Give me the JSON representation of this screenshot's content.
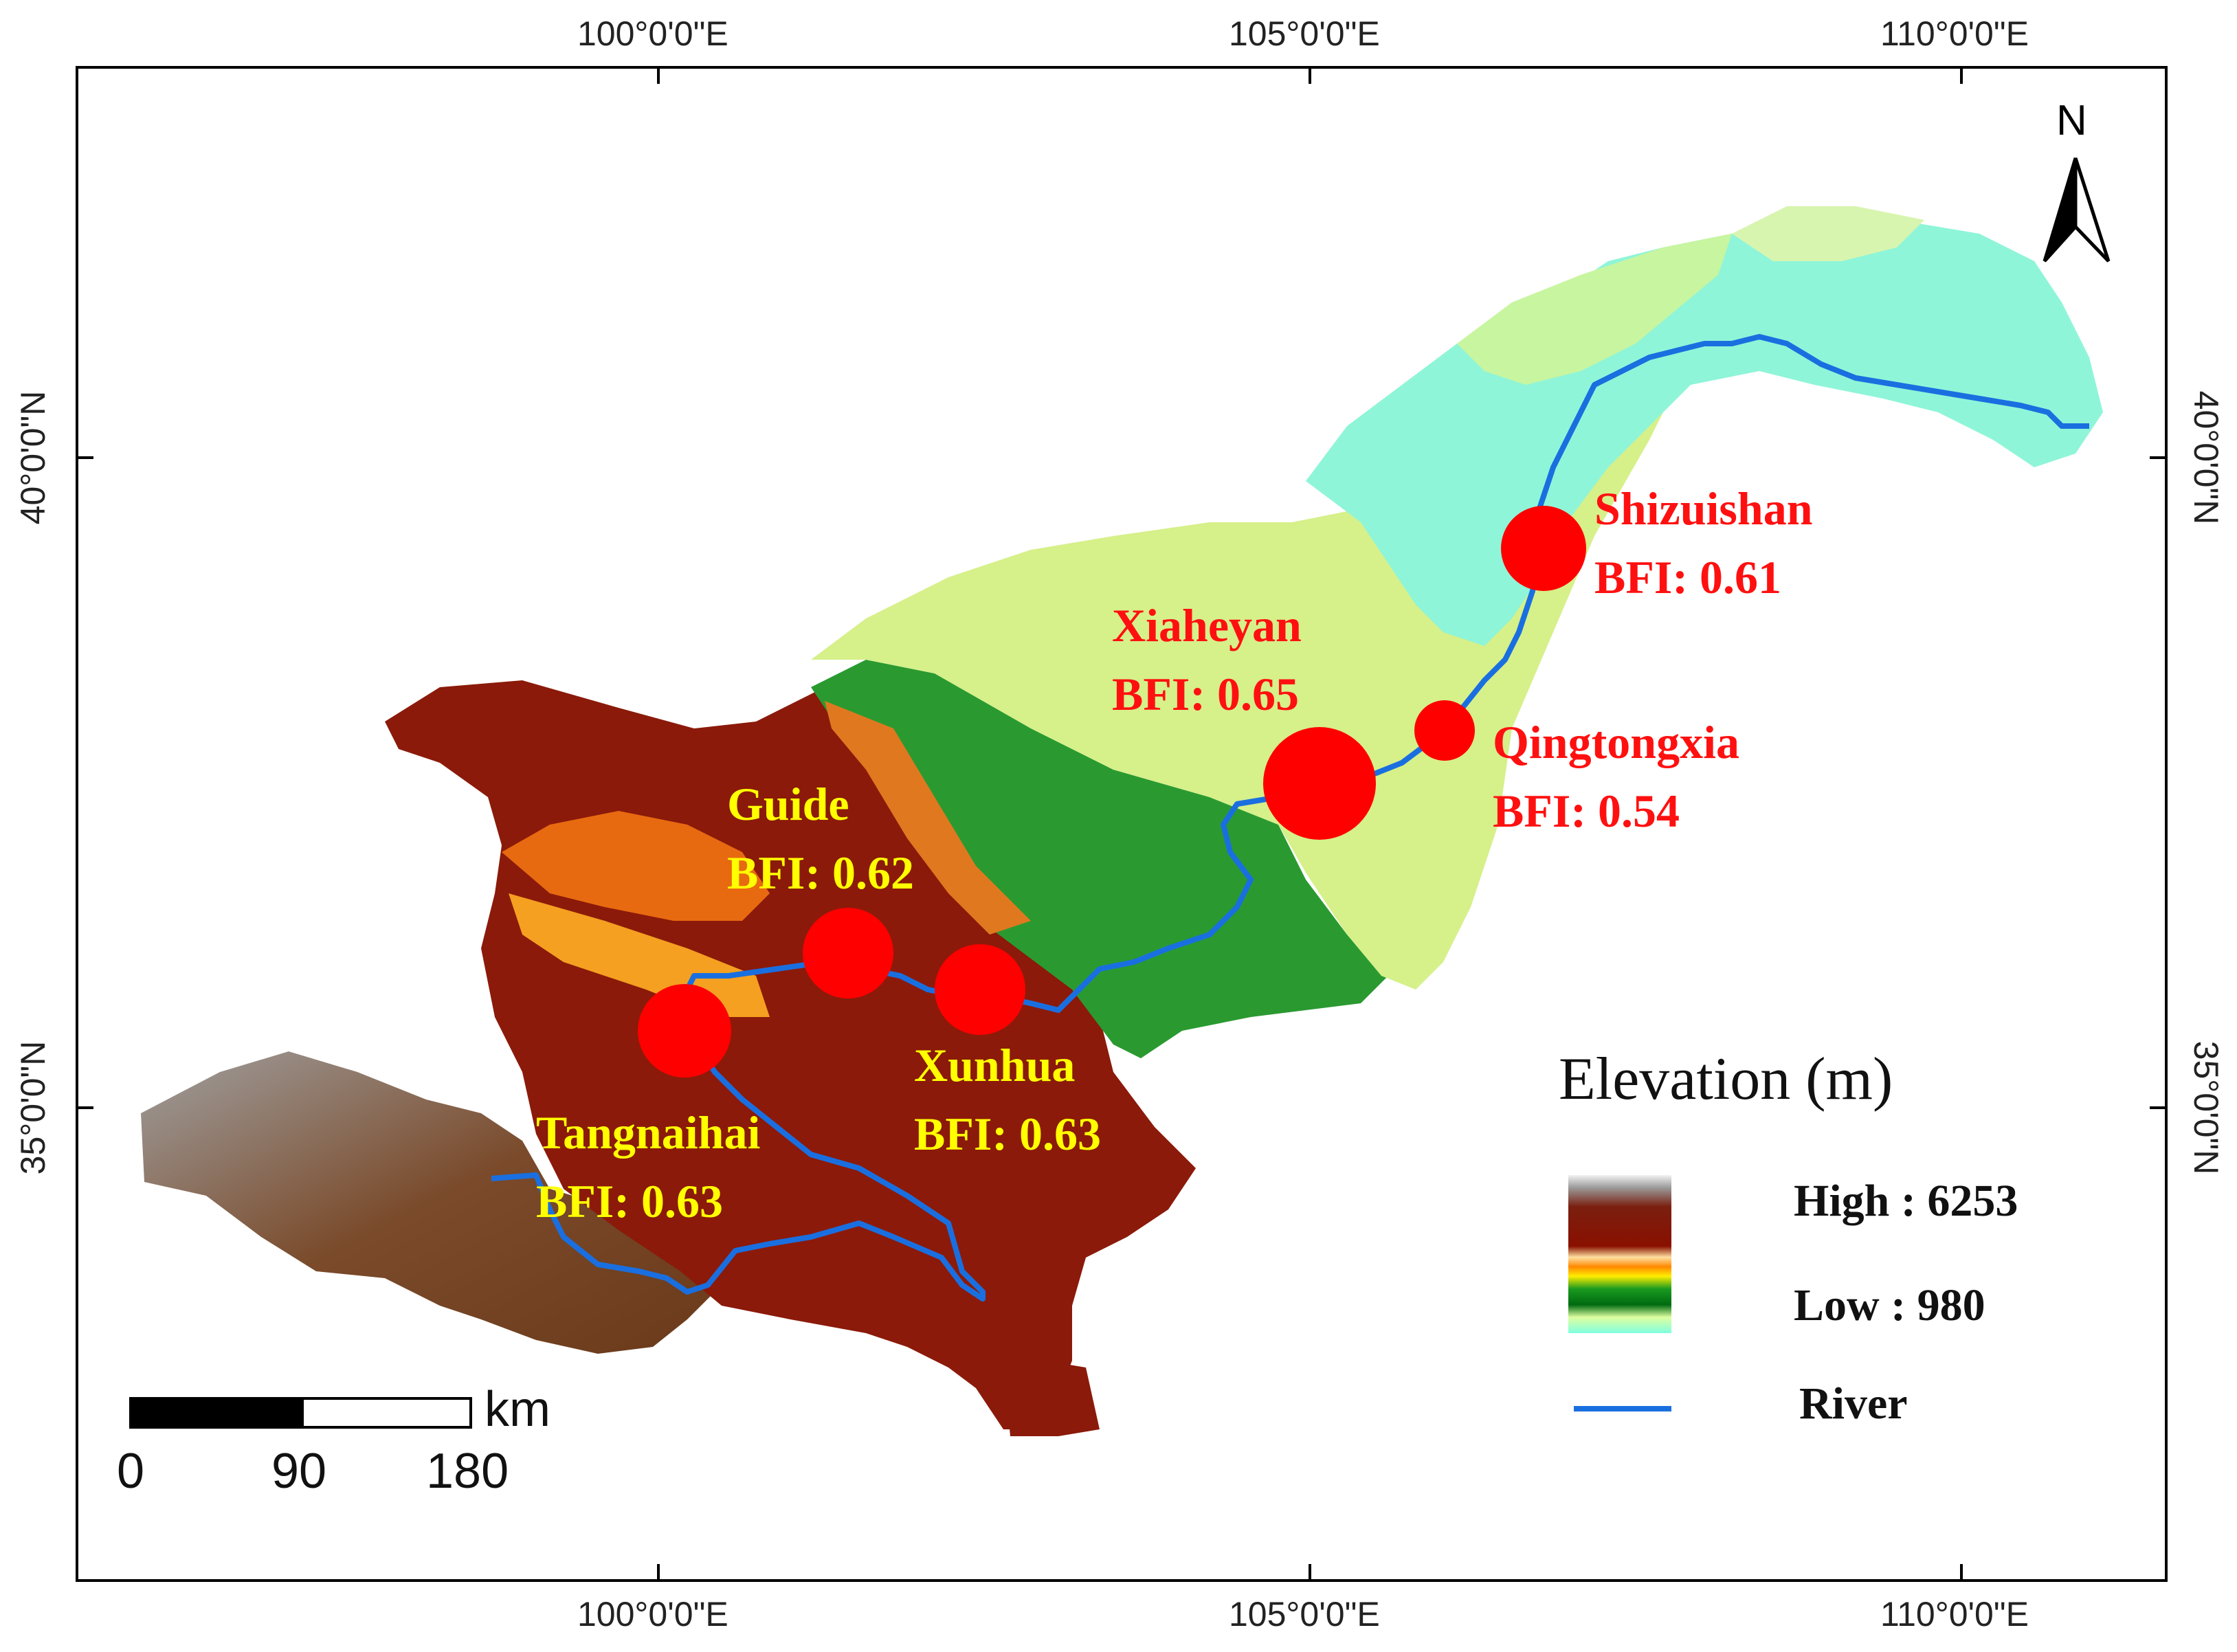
{
  "graticule": {
    "top": [
      "100°0'0\"E",
      "105°0'0\"E",
      "110°0'0\"E"
    ],
    "bottom": [
      "100°0'0\"E",
      "105°0'0\"E",
      "110°0'0\"E"
    ],
    "left": [
      "40°0'0\"N",
      "35°0'0\"N"
    ],
    "right": [
      "40°0'0\"N",
      "35°0'0\"N"
    ]
  },
  "stations": [
    {
      "name": "Shizuishan",
      "bfi": "BFI: 0.61",
      "lon": 106.8,
      "lat": 39.25,
      "color": "#ff0000"
    },
    {
      "name": "Xiaheyan",
      "bfi": "BFI: 0.65",
      "lon": 105.05,
      "lat": 37.55,
      "color": "#ff0000"
    },
    {
      "name": "Qingtongxia",
      "bfi": "BFI: 0.54",
      "lon": 106.05,
      "lat": 38.0,
      "color": "#ff0000"
    },
    {
      "name": "Guide",
      "bfi": "BFI: 0.62",
      "lon": 101.45,
      "lat": 36.1,
      "color": "#ffff00"
    },
    {
      "name": "Xunhua",
      "bfi": "BFI: 0.63",
      "lon": 102.5,
      "lat": 35.9,
      "color": "#ffff00"
    },
    {
      "name": "Tangnaihai",
      "bfi": "BFI: 0.63",
      "lon": 100.2,
      "lat": 35.6,
      "color": "#ffff00"
    }
  ],
  "legend": {
    "title": "Elevation (m)",
    "high_label": "High : 6253",
    "low_label": "Low : 980",
    "river_label": "River",
    "river_color": "#1a6fe0"
  },
  "scale_bar": {
    "unit": "km",
    "ticks": [
      "0",
      "90",
      "180"
    ]
  },
  "north_arrow": {
    "label": "N"
  }
}
